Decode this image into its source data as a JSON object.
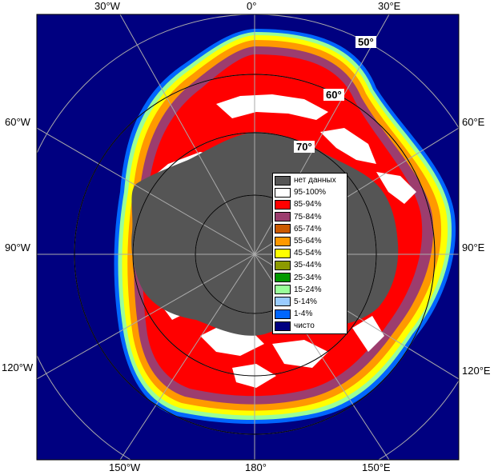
{
  "longitude_labels": [
    "30°W",
    "0°",
    "30°E",
    "60°W",
    "60°E",
    "90°W",
    "90°E",
    "120°W",
    "120°E",
    "150°W",
    "180°",
    "150°E"
  ],
  "latitude_labels": [
    "50°",
    "60°",
    "70°"
  ],
  "legend": {
    "items": [
      {
        "label": "нет данных",
        "color": "#555555"
      },
      {
        "label": "95-100%",
        "color": "#ffffff"
      },
      {
        "label": "85-94%",
        "color": "#ff0000"
      },
      {
        "label": "75-84%",
        "color": "#9c3d6e"
      },
      {
        "label": "65-74%",
        "color": "#cc5a00"
      },
      {
        "label": "55-64%",
        "color": "#ff9900"
      },
      {
        "label": "45-54%",
        "color": "#ffff00"
      },
      {
        "label": "35-44%",
        "color": "#8c9a00"
      },
      {
        "label": "25-34%",
        "color": "#009900"
      },
      {
        "label": "15-24%",
        "color": "#99ff99"
      },
      {
        "label": "5-14%",
        "color": "#99ccff"
      },
      {
        "label": "1-4%",
        "color": "#0066ff"
      },
      {
        "label": "чисто",
        "color": "#000080"
      }
    ]
  },
  "colors": {
    "ocean": "#000080",
    "land": "#555555",
    "grid": "#aaaaaa",
    "frame": "#000000"
  }
}
